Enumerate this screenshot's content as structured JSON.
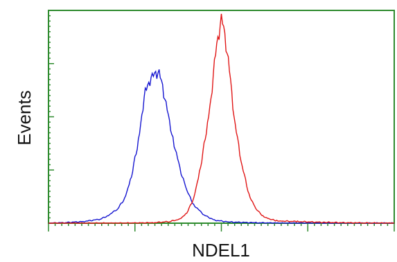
{
  "chart_data": {
    "type": "line",
    "title": "",
    "xlabel": "NDEL1",
    "ylabel": "Events",
    "xlim": [
      0,
      100
    ],
    "ylim": [
      0,
      100
    ],
    "grid": false,
    "legend": "none",
    "axis_color": "#2e8b2e",
    "series": [
      {
        "color": "#1515d0",
        "x": [
          0,
          5,
          10,
          15,
          17,
          20,
          22,
          24,
          26,
          27,
          28,
          29,
          30,
          31,
          32,
          33,
          34,
          36,
          37,
          38,
          40,
          42,
          45,
          48,
          52,
          60,
          70,
          100
        ],
        "y": [
          0,
          0.3,
          0.8,
          2,
          3.5,
          7,
          12,
          23,
          40,
          54,
          64,
          70,
          71,
          75,
          73,
          68,
          58,
          42,
          34,
          27,
          16,
          9,
          4,
          1.5,
          0.6,
          0.2,
          0,
          0
        ]
      },
      {
        "color": "#e01515",
        "x": [
          0,
          20,
          30,
          35,
          38,
          40,
          42,
          44,
          46,
          47,
          48,
          49,
          50,
          51,
          52,
          53,
          54,
          55,
          56,
          58,
          60,
          62,
          64,
          66,
          68,
          72,
          80,
          90,
          100
        ],
        "y": [
          0,
          0,
          0.2,
          0.8,
          2,
          5,
          12,
          28,
          48,
          62,
          78,
          92,
          100,
          93,
          80,
          64,
          48,
          38,
          28,
          14,
          7,
          3.5,
          2,
          1.2,
          1,
          0.8,
          0.4,
          0.1,
          0
        ]
      }
    ]
  }
}
